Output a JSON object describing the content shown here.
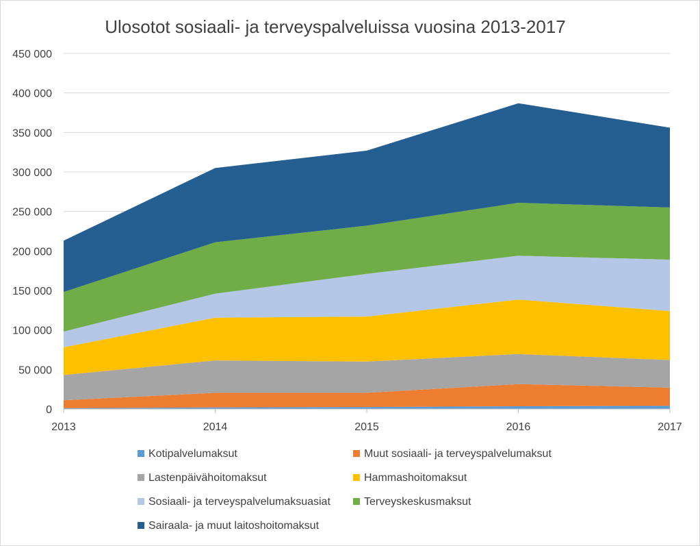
{
  "chart_data": {
    "type": "area",
    "stacked": true,
    "title": "Ulosotot sosiaali- ja terveyspalveluissa vuosina 2013-2017",
    "xlabel": "",
    "ylabel": "",
    "categories": [
      "2013",
      "2014",
      "2015",
      "2016",
      "2017"
    ],
    "ylim": [
      0,
      450000
    ],
    "y_ticks": [
      0,
      50000,
      100000,
      150000,
      200000,
      250000,
      300000,
      350000,
      400000,
      450000
    ],
    "y_tick_labels": [
      "0",
      "50 000",
      "100 000",
      "150 000",
      "200 000",
      "250 000",
      "300 000",
      "350 000",
      "400 000",
      "450 000"
    ],
    "grid": true,
    "legend_position": "bottom",
    "series": [
      {
        "name": "Kotipalvelumaksut",
        "color": "#5b9bd5",
        "values": [
          1000,
          2000,
          2500,
          3500,
          4000
        ]
      },
      {
        "name": "Muut sosiaali- ja terveyspalvelumaksut",
        "color": "#ed7d31",
        "values": [
          10000,
          18500,
          18000,
          28000,
          23000
        ]
      },
      {
        "name": "Lastenpäivähoitomaksut",
        "color": "#a5a5a5",
        "values": [
          32000,
          41000,
          39500,
          38000,
          35000
        ]
      },
      {
        "name": "Hammashoitomaksut",
        "color": "#ffc000",
        "values": [
          35000,
          54000,
          57000,
          69000,
          62000
        ]
      },
      {
        "name": "Sosiaali- ja terveyspalvelumaksuasiat",
        "color": "#b4c7e7",
        "values": [
          20000,
          30500,
          54000,
          55500,
          65000
        ]
      },
      {
        "name": "Terveyskeskusmaksut",
        "color": "#70ad47",
        "values": [
          50000,
          65000,
          61000,
          67000,
          66000
        ]
      },
      {
        "name": "Sairaala- ja muut laitoshoitomaksut",
        "color": "#255e91",
        "values": [
          65000,
          94000,
          95000,
          126000,
          101000
        ]
      }
    ]
  }
}
